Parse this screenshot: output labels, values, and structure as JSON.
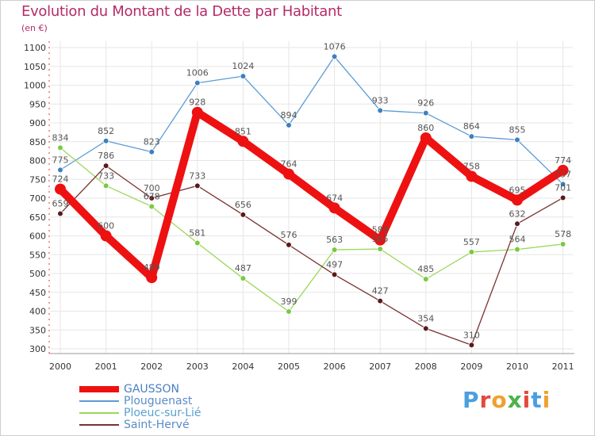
{
  "title": "Evolution du Montant de la Dette par Habitant",
  "unit": "(en €)",
  "brand": "Proxiti",
  "colors": {
    "title": "#b52b68",
    "brand_letters": [
      "#4a9fe0",
      "#e34a3c",
      "#f0a030",
      "#4ab34a",
      "#e34a3c",
      "#4a9fe0",
      "#f0a030"
    ]
  },
  "chart_data": {
    "type": "line",
    "title": "Evolution du Montant de la Dette par Habitant",
    "ylabel": "(en €)",
    "xlabel": "",
    "ylim": [
      300,
      1100
    ],
    "yticks": [
      300,
      350,
      400,
      450,
      500,
      550,
      600,
      650,
      700,
      750,
      800,
      850,
      900,
      950,
      1000,
      1050,
      1100
    ],
    "grid": true,
    "legend_position": "bottom-left",
    "categories": [
      "2000",
      "2001",
      "2002",
      "2003",
      "2004",
      "2005",
      "2006",
      "2007",
      "2008",
      "2009",
      "2010",
      "2011"
    ],
    "series": [
      {
        "name": "GAUSSON",
        "color": "#ee1111",
        "emphasis": true,
        "label_color": "#555555",
        "values": [
          724,
          600,
          489,
          928,
          851,
          764,
          674,
          589,
          860,
          758,
          695,
          774
        ]
      },
      {
        "name": "Plouguenast",
        "color": "#5b9bd5",
        "marker": "#3f7fc0",
        "label_color": "#555555",
        "values": [
          775,
          852,
          823,
          1006,
          1024,
          894,
          1076,
          933,
          926,
          864,
          855,
          737
        ]
      },
      {
        "name": "Ploeuc-sur-Lié",
        "color": "#9ad85a",
        "marker": "#7cc940",
        "label_color": "#555555",
        "values": [
          834,
          733,
          678,
          581,
          487,
          399,
          563,
          565,
          485,
          557,
          564,
          578
        ]
      },
      {
        "name": "Saint-Hervé",
        "color": "#7a3030",
        "marker": "#5a1a1a",
        "label_color": "#555555",
        "values": [
          659,
          786,
          700,
          733,
          656,
          576,
          497,
          427,
          354,
          310,
          632,
          701
        ]
      }
    ]
  }
}
